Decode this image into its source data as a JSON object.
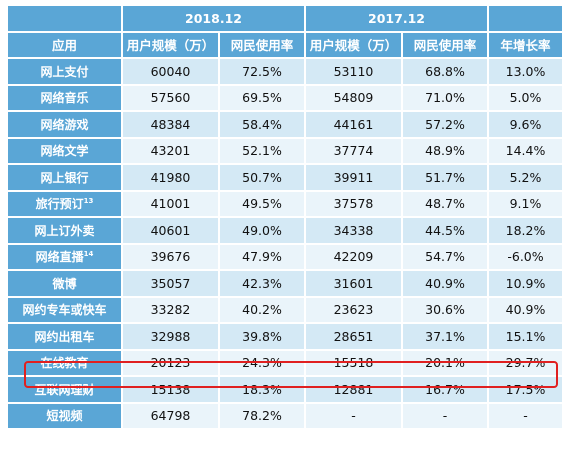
{
  "header": {
    "period_2018": "2018.12",
    "period_2017": "2017.12",
    "col_app": "应用",
    "col_users_2018": "用户规模（万）",
    "col_rate_2018": "网民使用率",
    "col_users_2017": "用户规模（万）",
    "col_rate_2017": "网民使用率",
    "col_growth": "年增长率"
  },
  "rows": [
    {
      "app": "网上支付",
      "sup": "",
      "u18": "60040",
      "r18": "72.5%",
      "u17": "53110",
      "r17": "68.8%",
      "g": "13.0%"
    },
    {
      "app": "网络音乐",
      "sup": "",
      "u18": "57560",
      "r18": "69.5%",
      "u17": "54809",
      "r17": "71.0%",
      "g": "5.0%"
    },
    {
      "app": "网络游戏",
      "sup": "",
      "u18": "48384",
      "r18": "58.4%",
      "u17": "44161",
      "r17": "57.2%",
      "g": "9.6%"
    },
    {
      "app": "网络文学",
      "sup": "",
      "u18": "43201",
      "r18": "52.1%",
      "u17": "37774",
      "r17": "48.9%",
      "g": "14.4%"
    },
    {
      "app": "网上银行",
      "sup": "",
      "u18": "41980",
      "r18": "50.7%",
      "u17": "39911",
      "r17": "51.7%",
      "g": "5.2%"
    },
    {
      "app": "旅行预订",
      "sup": "13",
      "u18": "41001",
      "r18": "49.5%",
      "u17": "37578",
      "r17": "48.7%",
      "g": "9.1%"
    },
    {
      "app": "网上订外卖",
      "sup": "",
      "u18": "40601",
      "r18": "49.0%",
      "u17": "34338",
      "r17": "44.5%",
      "g": "18.2%"
    },
    {
      "app": "网络直播",
      "sup": "14",
      "u18": "39676",
      "r18": "47.9%",
      "u17": "42209",
      "r17": "54.7%",
      "g": "-6.0%"
    },
    {
      "app": "微博",
      "sup": "",
      "u18": "35057",
      "r18": "42.3%",
      "u17": "31601",
      "r17": "40.9%",
      "g": "10.9%"
    },
    {
      "app": "网约专车或快车",
      "sup": "",
      "u18": "33282",
      "r18": "40.2%",
      "u17": "23623",
      "r17": "30.6%",
      "g": "40.9%"
    },
    {
      "app": "网约出租车",
      "sup": "",
      "u18": "32988",
      "r18": "39.8%",
      "u17": "28651",
      "r17": "37.1%",
      "g": "15.1%"
    },
    {
      "app": "在线教育",
      "sup": "",
      "u18": "20123",
      "r18": "24.3%",
      "u17": "15518",
      "r17": "20.1%",
      "g": "29.7%"
    },
    {
      "app": "互联网理财",
      "sup": "",
      "u18": "15138",
      "r18": "18.3%",
      "u17": "12881",
      "r17": "16.7%",
      "g": "17.5%"
    },
    {
      "app": "短视频",
      "sup": "",
      "u18": "64798",
      "r18": "78.2%",
      "u17": "-",
      "r17": "-",
      "g": "-"
    }
  ],
  "colors": {
    "header_blue": "#5aa6d6",
    "row_light": "#d4e9f5",
    "row_lighter": "#eaf4fa",
    "highlight_red": "#e02020"
  }
}
